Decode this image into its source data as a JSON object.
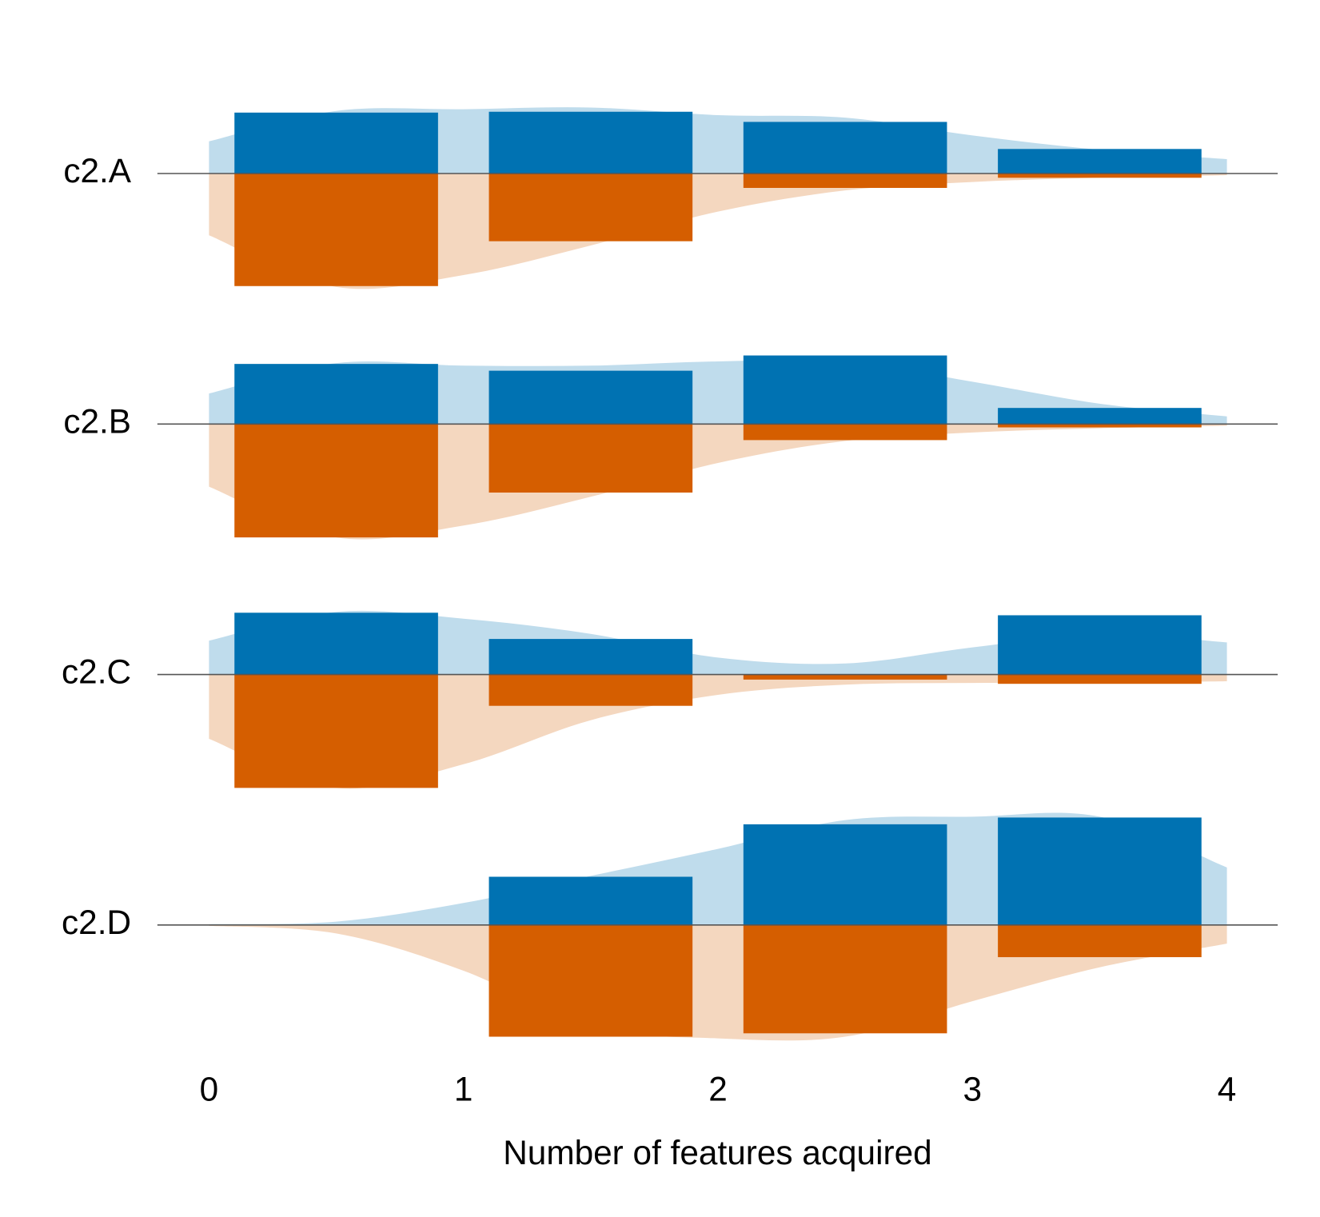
{
  "chart_data": {
    "type": "mirrored-bar",
    "xlabel": "Number of features acquired",
    "xlim": [
      0,
      4
    ],
    "xticks": [
      0,
      1,
      2,
      3,
      4
    ],
    "ylim": [
      -0.74,
      0.74
    ],
    "bins": [
      0,
      1,
      2,
      3,
      4
    ],
    "density_x": [
      0,
      0.5,
      1,
      1.5,
      2,
      2.5,
      3,
      3.5,
      4
    ],
    "up_color": "#0072b2",
    "down_color": "#d55e00",
    "rows": [
      {
        "label": "c2.A",
        "up": {
          "values": [
            0.36,
            0.365,
            0.305,
            0.145
          ],
          "density": [
            0.19,
            0.37,
            0.38,
            0.39,
            0.345,
            0.33,
            0.225,
            0.14,
            0.085
          ]
        },
        "down": {
          "values": [
            0.665,
            0.4,
            0.085,
            0.025
          ],
          "density": [
            0.365,
            0.67,
            0.6,
            0.425,
            0.225,
            0.1,
            0.05,
            0.025,
            0.01
          ]
        }
      },
      {
        "label": "c2.B",
        "up": {
          "values": [
            0.355,
            0.315,
            0.405,
            0.095
          ],
          "density": [
            0.18,
            0.36,
            0.345,
            0.345,
            0.37,
            0.37,
            0.25,
            0.12,
            0.045
          ]
        },
        "down": {
          "values": [
            0.67,
            0.405,
            0.095,
            0.02
          ],
          "density": [
            0.37,
            0.67,
            0.6,
            0.43,
            0.23,
            0.1,
            0.05,
            0.025,
            0.01
          ]
        }
      },
      {
        "label": "c2.C",
        "up": {
          "values": [
            0.365,
            0.21,
            0,
            0.35
          ],
          "density": [
            0.2,
            0.37,
            0.33,
            0.24,
            0.1,
            0.065,
            0.16,
            0.24,
            0.19
          ]
        },
        "down": {
          "values": [
            0.67,
            0.185,
            0.03,
            0.055
          ],
          "density": [
            0.38,
            0.67,
            0.53,
            0.27,
            0.12,
            0.06,
            0.05,
            0.05,
            0.04
          ]
        }
      },
      {
        "label": "c2.D",
        "up": {
          "values": [
            0,
            0.285,
            0.595,
            0.635
          ],
          "density": [
            0.005,
            0.02,
            0.13,
            0.29,
            0.45,
            0.62,
            0.64,
            0.64,
            0.34
          ]
        },
        "down": {
          "values": [
            0,
            0.66,
            0.64,
            0.19
          ],
          "density": [
            0.005,
            0.05,
            0.27,
            0.6,
            0.67,
            0.66,
            0.45,
            0.25,
            0.11
          ]
        }
      }
    ]
  }
}
